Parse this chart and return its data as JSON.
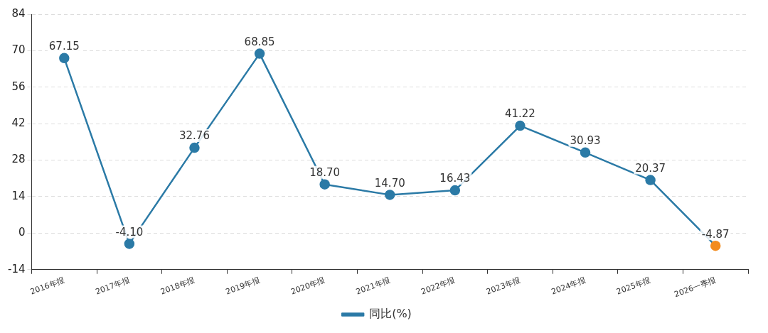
{
  "chart_data": {
    "type": "line",
    "categories": [
      "2016年报",
      "2017年报",
      "2018年报",
      "2019年报",
      "2020年报",
      "2021年报",
      "2022年报",
      "2023年报",
      "2024年报",
      "2025年报",
      "2026一季报"
    ],
    "series": [
      {
        "name": "同比(%)",
        "color": "#2b7aa6",
        "colors": [
          "#2b7aa6",
          "#2b7aa6",
          "#2b7aa6",
          "#2b7aa6",
          "#2b7aa6",
          "#2b7aa6",
          "#2b7aa6",
          "#2b7aa6",
          "#2b7aa6",
          "#2b7aa6",
          "#f28c1f"
        ],
        "values": [
          67.15,
          -4.1,
          32.76,
          68.85,
          18.7,
          14.7,
          16.43,
          41.22,
          30.93,
          20.37,
          -4.87
        ],
        "value_labels": [
          "67.15",
          "-4.10",
          "32.76",
          "68.85",
          "18.70",
          "14.70",
          "16.43",
          "41.22",
          "30.93",
          "20.37",
          "-4.87"
        ]
      }
    ],
    "ylim": [
      -14,
      84
    ],
    "yticks": [
      -14,
      0,
      14,
      28,
      42,
      56,
      70,
      84
    ],
    "grid": "y",
    "legend": "bottom",
    "marker": "circle",
    "line_style": "solid"
  }
}
